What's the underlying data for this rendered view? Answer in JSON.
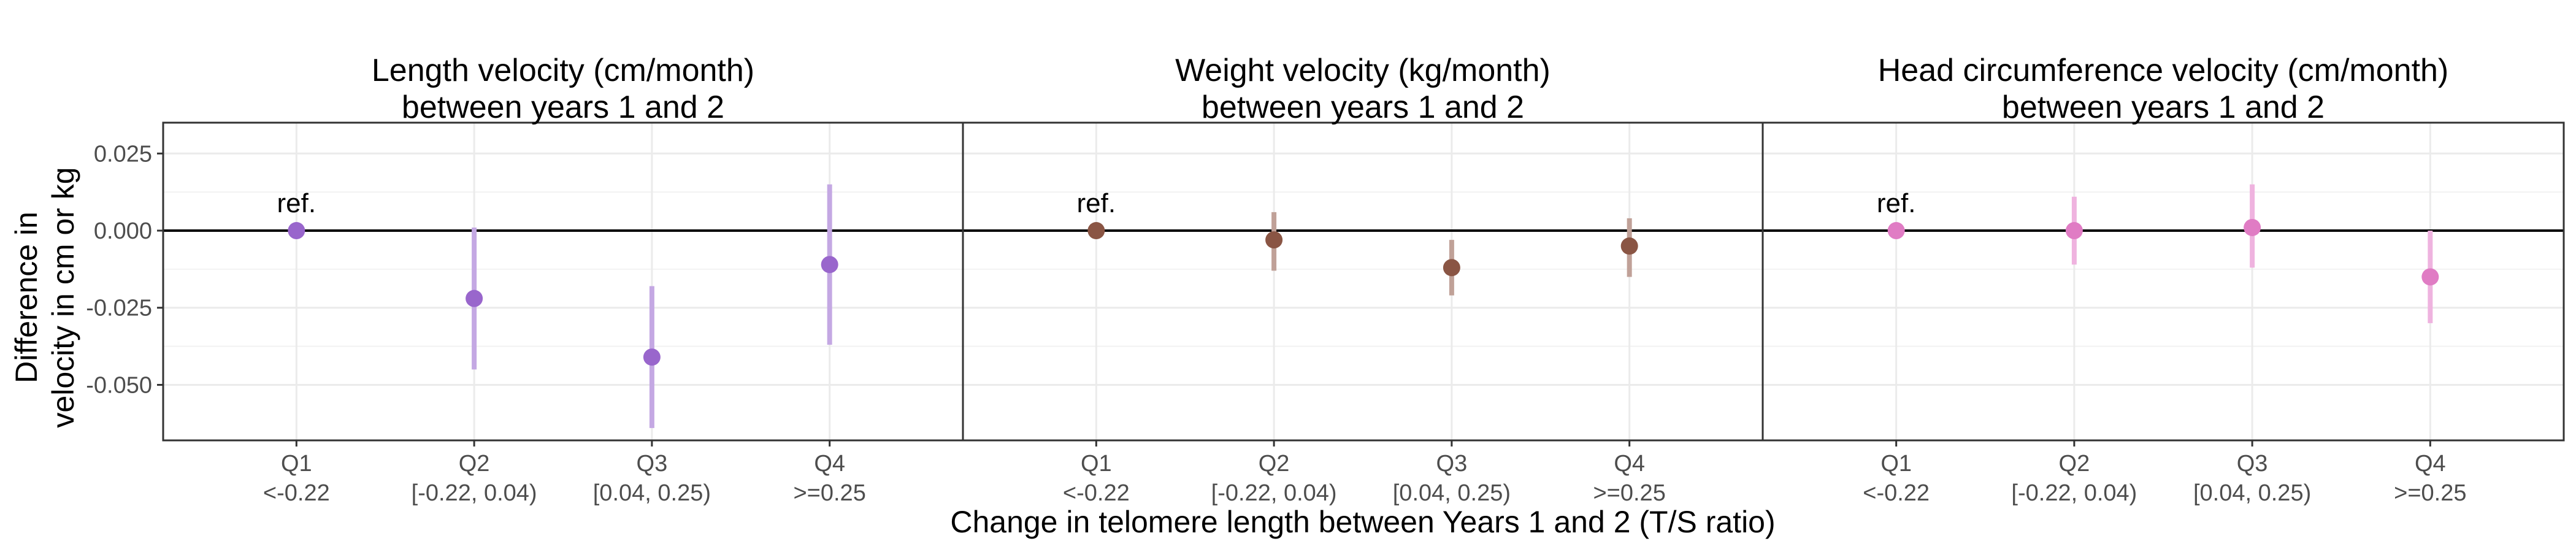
{
  "chart_data": {
    "type": "scatter",
    "subtype": "point-range faceted",
    "ylabel_lines": [
      "Difference in",
      "velocity in cm or kg"
    ],
    "xlabel": "Change in telomere length between Years 1 and 2 (T/S ratio)",
    "ylim": [
      -0.068,
      0.035
    ],
    "yticks": [
      0.025,
      0.0,
      -0.025,
      -0.05
    ],
    "ytick_labels": [
      "0.025",
      "0.000",
      "-0.025",
      "-0.050"
    ],
    "categories": [
      {
        "q": "Q1",
        "range": "<-0.22"
      },
      {
        "q": "Q2",
        "range": "[-0.22, 0.04)"
      },
      {
        "q": "Q3",
        "range": "[0.04, 0.25)"
      },
      {
        "q": "Q4",
        "range": ">=0.25"
      }
    ],
    "reference_line": 0.0,
    "grid": true,
    "ref_text": "ref.",
    "panels": [
      {
        "title_lines": [
          "Length velocity (cm/month)",
          "between years 1 and 2"
        ],
        "color": "#9966cc",
        "interval_color": "#c4a8e3",
        "estimates": [
          0.0,
          -0.022,
          -0.041,
          -0.011
        ],
        "lower": [
          null,
          -0.045,
          -0.064,
          -0.037
        ],
        "upper": [
          null,
          0.001,
          -0.018,
          0.015
        ]
      },
      {
        "title_lines": [
          "Weight velocity (kg/month)",
          "between years 1 and 2"
        ],
        "color": "#8a5544",
        "interval_color": "#c0a198",
        "estimates": [
          0.0,
          -0.003,
          -0.012,
          -0.005
        ],
        "lower": [
          null,
          -0.013,
          -0.021,
          -0.015
        ],
        "upper": [
          null,
          0.006,
          -0.003,
          0.004
        ]
      },
      {
        "title_lines": [
          "Head circumference velocity (cm/month)",
          "between years 1 and 2"
        ],
        "color": "#e07cc4",
        "interval_color": "#efb3df",
        "estimates": [
          0.0,
          0.0,
          0.001,
          -0.015
        ],
        "lower": [
          null,
          -0.011,
          -0.012,
          -0.03
        ],
        "upper": [
          null,
          0.011,
          0.015,
          0.0
        ]
      }
    ]
  }
}
